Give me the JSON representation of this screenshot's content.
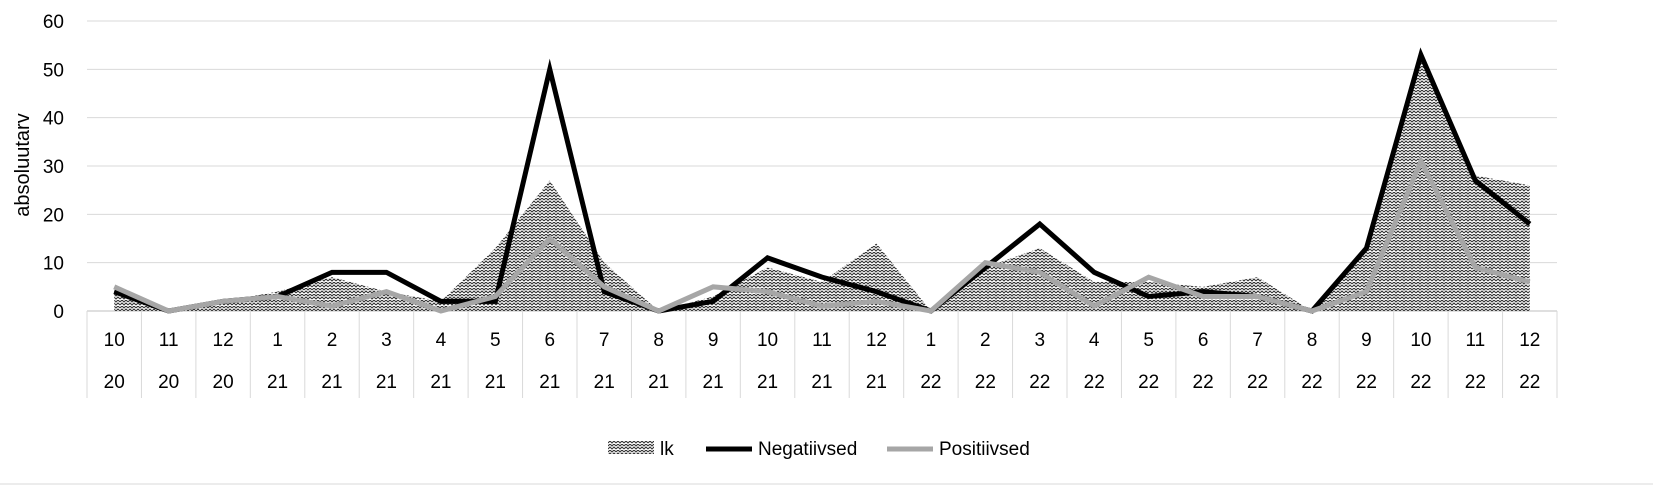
{
  "chart_data": {
    "type": "line",
    "title": "",
    "ylabel": "absoluutarv",
    "xlabel": "",
    "ylim": [
      0,
      60
    ],
    "yticks": [
      0,
      10,
      20,
      30,
      40,
      50,
      60
    ],
    "grid": true,
    "legend_position": "bottom",
    "categories": [
      {
        "month": "10",
        "year": "20"
      },
      {
        "month": "11",
        "year": "20"
      },
      {
        "month": "12",
        "year": "20"
      },
      {
        "month": "1",
        "year": "21"
      },
      {
        "month": "2",
        "year": "21"
      },
      {
        "month": "3",
        "year": "21"
      },
      {
        "month": "4",
        "year": "21"
      },
      {
        "month": "5",
        "year": "21"
      },
      {
        "month": "6",
        "year": "21"
      },
      {
        "month": "7",
        "year": "21"
      },
      {
        "month": "8",
        "year": "21"
      },
      {
        "month": "9",
        "year": "21"
      },
      {
        "month": "10",
        "year": "21"
      },
      {
        "month": "11",
        "year": "21"
      },
      {
        "month": "12",
        "year": "21"
      },
      {
        "month": "1",
        "year": "22"
      },
      {
        "month": "2",
        "year": "22"
      },
      {
        "month": "3",
        "year": "22"
      },
      {
        "month": "4",
        "year": "22"
      },
      {
        "month": "5",
        "year": "22"
      },
      {
        "month": "6",
        "year": "22"
      },
      {
        "month": "7",
        "year": "22"
      },
      {
        "month": "8",
        "year": "22"
      },
      {
        "month": "9",
        "year": "22"
      },
      {
        "month": "10",
        "year": "22"
      },
      {
        "month": "11",
        "year": "22"
      },
      {
        "month": "12",
        "year": "22"
      }
    ],
    "series": [
      {
        "name": "lk",
        "kind": "area",
        "color": "#444444",
        "values": [
          5,
          0,
          2,
          4,
          7,
          4,
          2,
          13,
          27,
          10,
          0,
          3,
          9,
          6,
          14,
          0,
          9,
          13,
          6,
          6,
          5,
          7,
          0,
          13,
          52,
          28,
          26
        ]
      },
      {
        "name": "Negatiivsed",
        "kind": "line",
        "color": "#000000",
        "values": [
          4,
          0,
          2,
          3,
          8,
          8,
          2,
          2,
          50,
          4,
          0,
          2,
          11,
          7,
          4,
          0,
          9,
          18,
          8,
          3,
          4,
          3,
          0,
          13,
          53,
          27,
          18
        ]
      },
      {
        "name": "Positiivsed",
        "kind": "line",
        "color": "#a6a6a6",
        "values": [
          5,
          0,
          2,
          3,
          1,
          4,
          0,
          3,
          15,
          5,
          0,
          5,
          4,
          1,
          2,
          0,
          10,
          8,
          1,
          7,
          3,
          3,
          0,
          4,
          31,
          9,
          6
        ]
      }
    ]
  }
}
